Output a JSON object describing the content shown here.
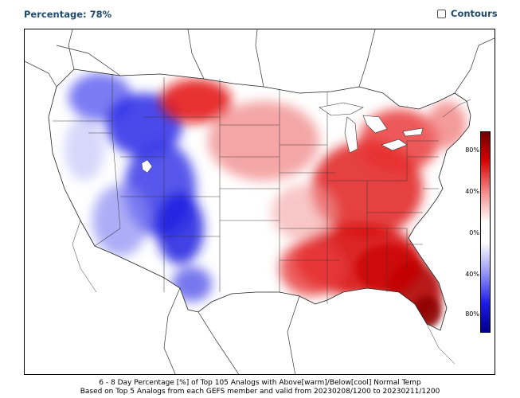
{
  "toolbar": {
    "percentage_label": "Percentage: 78%",
    "contours_label": "Contours",
    "contours_checked": false
  },
  "colorbar": {
    "ticks": [
      "80%",
      "40%",
      "0%",
      "40%",
      "80%"
    ],
    "warm_color": "#d40000",
    "cool_color": "#1a1ae6"
  },
  "caption": {
    "line1": "6 - 8 Day Percentage [%] of Top 105 Analogs with Above[warm]/Below[cool] Normal Temp",
    "line2": "Based on Top 5 Analogs from each GEFS member and valid from 20230208/1200 to 20230211/1200"
  }
}
